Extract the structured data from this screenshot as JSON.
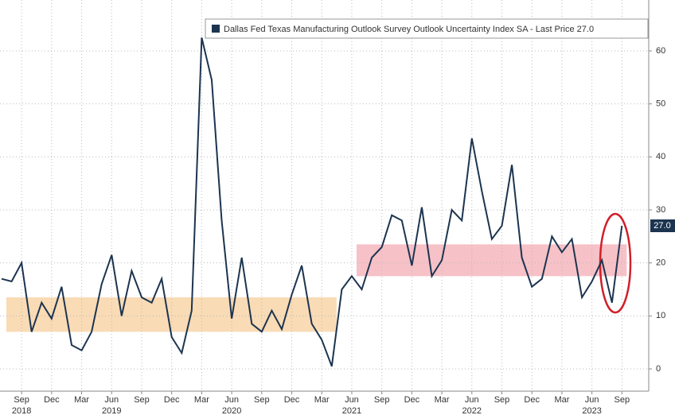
{
  "chart_data": {
    "type": "line",
    "x": [
      "2018-07",
      "2018-08",
      "2018-09",
      "2018-10",
      "2018-11",
      "2018-12",
      "2019-01",
      "2019-02",
      "2019-03",
      "2019-04",
      "2019-05",
      "2019-06",
      "2019-07",
      "2019-08",
      "2019-09",
      "2019-10",
      "2019-11",
      "2019-12",
      "2020-01",
      "2020-02",
      "2020-03",
      "2020-04",
      "2020-05",
      "2020-06",
      "2020-07",
      "2020-08",
      "2020-09",
      "2020-10",
      "2020-11",
      "2020-12",
      "2021-01",
      "2021-02",
      "2021-03",
      "2021-04",
      "2021-05",
      "2021-06",
      "2021-07",
      "2021-08",
      "2021-09",
      "2021-10",
      "2021-11",
      "2021-12",
      "2022-01",
      "2022-02",
      "2022-03",
      "2022-04",
      "2022-05",
      "2022-06",
      "2022-07",
      "2022-08",
      "2022-09",
      "2022-10",
      "2022-11",
      "2022-12",
      "2023-01",
      "2023-02",
      "2023-03",
      "2023-04",
      "2023-05",
      "2023-06",
      "2023-07",
      "2023-08",
      "2023-09"
    ],
    "series": [
      {
        "name": "Dallas Fed Texas Manufacturing Outlook Survey Outlook Uncertainty Index SA - Last Price 27.0",
        "color": "#1c3450",
        "values": [
          17,
          16.5,
          20,
          7,
          12.5,
          9.5,
          15.5,
          4.5,
          3.5,
          7,
          16,
          21.5,
          10,
          18.5,
          13.5,
          12.5,
          17,
          6,
          3,
          11,
          62.5,
          54.5,
          28,
          9.5,
          21,
          8.5,
          7,
          11,
          7.5,
          14,
          19.5,
          8.5,
          5.5,
          0.5,
          15,
          17.5,
          15,
          21,
          23,
          29,
          28,
          19.5,
          30.5,
          17.5,
          20.5,
          30,
          28,
          43.5,
          33.5,
          24.5,
          27,
          38.5,
          21,
          15.5,
          17,
          25,
          22,
          24.5,
          13.5,
          16.5,
          20.5,
          12.5,
          27
        ]
      }
    ],
    "last_value_label": {
      "value": 27,
      "label": "27.0"
    },
    "bands": [
      {
        "x": [
          "2018-07",
          "2021-04"
        ],
        "y": [
          7,
          13.5
        ],
        "color": "#f8d5a8"
      },
      {
        "x": [
          "2021-06",
          "2023-09"
        ],
        "y": [
          17.5,
          23.5
        ],
        "color": "#f4b6bd"
      }
    ],
    "ylim": [
      -4.2,
      69.6
    ],
    "yticks": [
      0,
      10,
      20,
      30,
      40,
      50,
      60
    ],
    "xticks": [
      {
        "value": "2018-09",
        "label": "Sep"
      },
      {
        "value": "2018-12",
        "label": "Dec"
      },
      {
        "value": "2019-03",
        "label": "Mar"
      },
      {
        "value": "2019-06",
        "label": "Jun"
      },
      {
        "value": "2019-09",
        "label": "Sep"
      },
      {
        "value": "2019-12",
        "label": "Dec"
      },
      {
        "value": "2020-03",
        "label": "Mar"
      },
      {
        "value": "2020-06",
        "label": "Jun"
      },
      {
        "value": "2020-09",
        "label": "Sep"
      },
      {
        "value": "2020-12",
        "label": "Dec"
      },
      {
        "value": "2021-03",
        "label": "Mar"
      },
      {
        "value": "2021-06",
        "label": "Jun"
      },
      {
        "value": "2021-09",
        "label": "Sep"
      },
      {
        "value": "2021-12",
        "label": "Dec"
      },
      {
        "value": "2022-03",
        "label": "Mar"
      },
      {
        "value": "2022-06",
        "label": "Jun"
      },
      {
        "value": "2022-09",
        "label": "Sep"
      },
      {
        "value": "2022-12",
        "label": "Dec"
      },
      {
        "value": "2023-03",
        "label": "Mar"
      },
      {
        "value": "2023-06",
        "label": "Jun"
      },
      {
        "value": "2023-09",
        "label": "Sep"
      }
    ],
    "year_labels": [
      {
        "value": "2018-09",
        "label": "2018"
      },
      {
        "value": "2019-06",
        "label": "2019"
      },
      {
        "value": "2020-06",
        "label": "2020"
      },
      {
        "value": "2021-06",
        "label": "2021"
      },
      {
        "value": "2022-06",
        "label": "2022"
      },
      {
        "value": "2023-06",
        "label": "2023"
      }
    ],
    "grid": true
  }
}
